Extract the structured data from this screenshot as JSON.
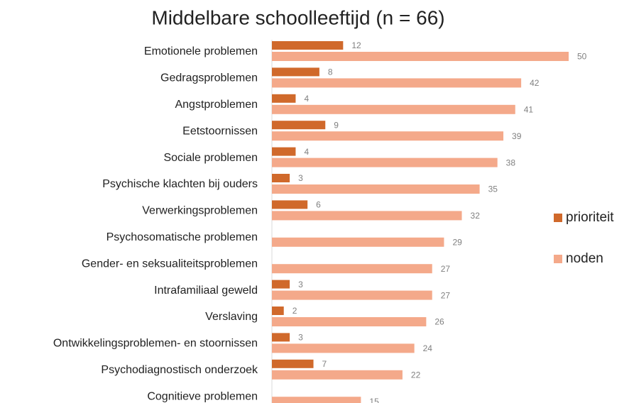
{
  "chart_data": {
    "type": "bar",
    "orientation": "horizontal",
    "title": "Middelbare schoolleeftijd (n = 66)",
    "categories": [
      "Emotionele problemen",
      "Gedragsproblemen",
      "Angstproblemen",
      "Eetstoornissen",
      "Sociale problemen",
      "Psychische klachten bij ouders",
      "Verwerkingsproblemen",
      "Psychosomatische problemen",
      "Gender- en seksualiteitsproblemen",
      "Intrafamiliaal geweld",
      "Verslaving",
      "Ontwikkelingsproblemen- en stoornissen",
      "Psychodiagnostisch onderzoek",
      "Cognitieve problemen"
    ],
    "series": [
      {
        "name": "prioriteit",
        "color": "#d0692b",
        "values": [
          12,
          8,
          4,
          9,
          4,
          3,
          6,
          null,
          null,
          3,
          2,
          3,
          7,
          null
        ]
      },
      {
        "name": "noden",
        "color": "#f4a98a",
        "values": [
          50,
          42,
          41,
          39,
          38,
          35,
          32,
          29,
          27,
          27,
          26,
          24,
          22,
          15
        ]
      }
    ]
  }
}
